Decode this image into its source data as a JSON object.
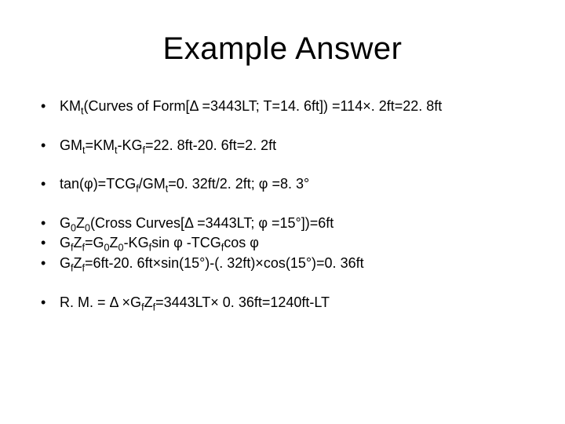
{
  "style": {
    "background_color": "#ffffff",
    "text_color": "#000000",
    "font_family": "Arial",
    "title_fontsize": 40,
    "body_fontsize": 18,
    "bullet_glyph": "•"
  },
  "title": "Example Answer",
  "lines": {
    "l1_a": "KM",
    "l1_b": "t",
    "l1_c": "(Curves of Form[Δ =3443LT; T=14. 6ft]) =114×. 2ft=22. 8ft",
    "l2_a": "GM",
    "l2_b": "t",
    "l2_c": "=KM",
    "l2_d": "t",
    "l2_e": "-KG",
    "l2_f": "f",
    "l2_g": "=22. 8ft-20. 6ft=2. 2ft",
    "l3_a": "tan(φ)=TCG",
    "l3_b": "f",
    "l3_c": "/GM",
    "l3_d": "t",
    "l3_e": "=0. 32ft/2. 2ft; φ =8. 3°",
    "l4_a": "G",
    "l4_b": "0",
    "l4_c": "Z",
    "l4_d": "0",
    "l4_e": "(Cross Curves[Δ =3443LT; φ =15°])=6ft",
    "l5_a": "G",
    "l5_b": "f",
    "l5_c": "Z",
    "l5_d": "f",
    "l5_e": "=G",
    "l5_f": "0",
    "l5_g": "Z",
    "l5_h": "0",
    "l5_i": "-KG",
    "l5_j": "f",
    "l5_k": "sin φ -TCG",
    "l5_l": "f",
    "l5_m": "cos φ",
    "l6_a": "G",
    "l6_b": "f",
    "l6_c": "Z",
    "l6_d": "f",
    "l6_e": "=6ft-20. 6ft×sin(15°)-(. 32ft)×cos(15°)=0. 36ft",
    "l7_a": "R. M. = Δ ×G",
    "l7_b": "f",
    "l7_c": "Z",
    "l7_d": "f",
    "l7_e": "=3443LT× 0. 36ft=1240ft-LT"
  }
}
